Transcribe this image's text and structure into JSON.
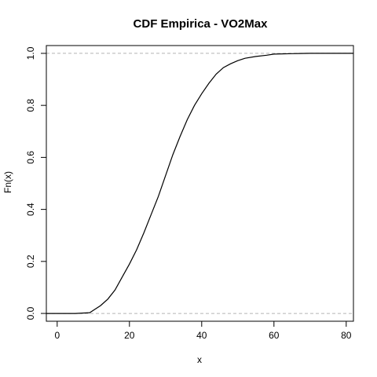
{
  "chart_data": {
    "type": "line",
    "title": "CDF Empirica - VO2Max",
    "xlabel": "x",
    "ylabel": "Fn(x)",
    "xlim": [
      -3,
      82
    ],
    "ylim": [
      -0.03,
      1.03
    ],
    "x_ticks": [
      0,
      20,
      40,
      60,
      80
    ],
    "y_ticks": [
      0.0,
      0.2,
      0.4,
      0.6,
      0.8,
      1.0
    ],
    "x_tick_labels": [
      "0",
      "20",
      "40",
      "60",
      "80"
    ],
    "y_tick_labels": [
      "0.0",
      "0.2",
      "0.4",
      "0.6",
      "0.8",
      "1.0"
    ],
    "reference_lines": [
      0,
      1
    ],
    "grid": false,
    "legend": "none",
    "series": [
      {
        "x": [
          -3,
          5,
          9,
          10,
          12,
          14,
          16,
          18,
          20,
          22,
          24,
          26,
          28,
          30,
          32,
          34,
          36,
          38,
          40,
          42,
          44,
          46,
          48,
          50,
          52,
          55,
          58,
          60,
          65,
          70,
          82
        ],
        "y": [
          0.0,
          0.0,
          0.003,
          0.012,
          0.03,
          0.055,
          0.09,
          0.14,
          0.19,
          0.245,
          0.31,
          0.38,
          0.45,
          0.53,
          0.61,
          0.68,
          0.745,
          0.8,
          0.845,
          0.885,
          0.92,
          0.945,
          0.96,
          0.972,
          0.981,
          0.988,
          0.993,
          0.997,
          0.999,
          1.0,
          1.0
        ]
      }
    ]
  }
}
